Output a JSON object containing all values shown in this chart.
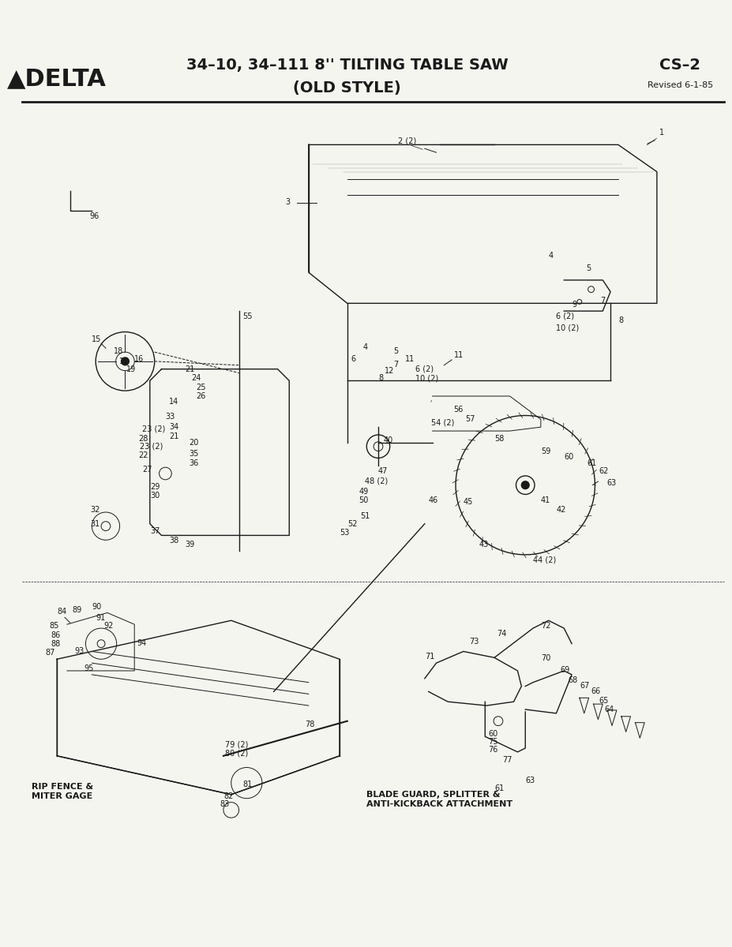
{
  "title_main": "34–10, 34–111 8'' TILTING TABLE SAW",
  "title_sub": "(OLD STYLE)",
  "brand": "▲DELTA",
  "code": "CS–2",
  "revised": "Revised 6-1-85",
  "bg_color": "#f5f5f0",
  "line_color": "#1a1a1a",
  "label_bottom_left": "RIP FENCE &\nMITER GAGE",
  "label_bottom_right": "BLADE GUARD, SPLITTER &\nANTI-KICKBACK ATTACHMENT",
  "figsize": [
    9.27,
    12.0
  ],
  "dpi": 100
}
